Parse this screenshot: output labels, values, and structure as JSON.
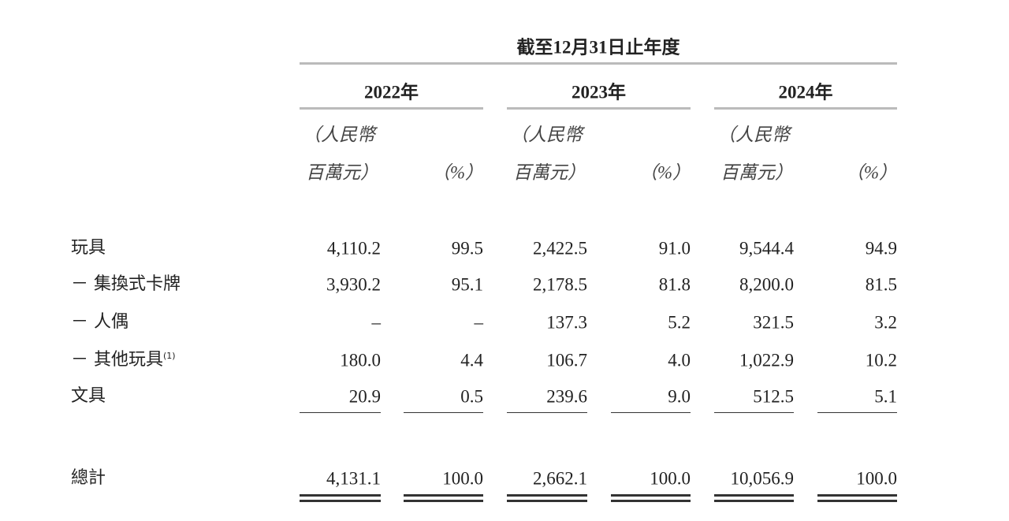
{
  "header": {
    "period": "截至12月31日止年度",
    "years": [
      "2022年",
      "2023年",
      "2024年"
    ],
    "unit_amount_line1": "（人民幣",
    "unit_amount_line2": "百萬元）",
    "unit_percent": "（%）"
  },
  "table": {
    "rows": [
      {
        "label": "玩具",
        "cells": [
          "4,110.2",
          "99.5",
          "2,422.5",
          "91.0",
          "9,544.4",
          "94.9"
        ]
      },
      {
        "label": "－ 集換式卡牌",
        "cells": [
          "3,930.2",
          "95.1",
          "2,178.5",
          "81.8",
          "8,200.0",
          "81.5"
        ]
      },
      {
        "label": "－ 人偶",
        "cells": [
          "–",
          "–",
          "137.3",
          "5.2",
          "321.5",
          "3.2"
        ]
      },
      {
        "label": "－ 其他玩具",
        "note": "(1)",
        "cells": [
          "180.0",
          "4.4",
          "106.7",
          "4.0",
          "1,022.9",
          "10.2"
        ]
      },
      {
        "label": "文具",
        "cells": [
          "20.9",
          "0.5",
          "239.6",
          "9.0",
          "512.5",
          "5.1"
        ]
      },
      {
        "label": "總計",
        "cells": [
          "4,131.1",
          "100.0",
          "2,662.1",
          "100.0",
          "10,056.9",
          "100.0"
        ]
      }
    ]
  }
}
